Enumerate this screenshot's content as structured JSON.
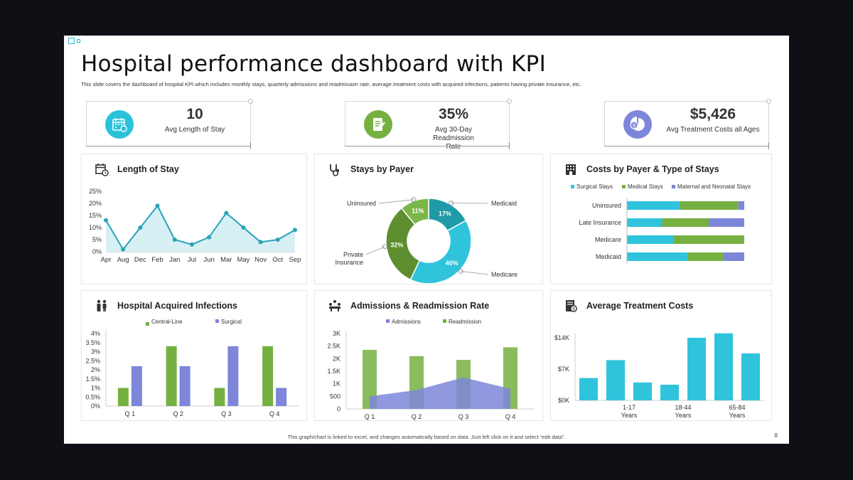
{
  "title": "Hospital performance dashboard with KPI",
  "subtitle": "This slide covers the dashboard of hospital KPI  which includes monthly stays, quarterly admissions and readmission rate, average treatment costs with acquired infections, patients having private insurance, etc.",
  "kpis": [
    {
      "value": "10",
      "label": "Avg Length of Stay",
      "icon": "calendar-icon",
      "color": "#29c3d9"
    },
    {
      "value": "35%",
      "label": "Avg 30-Day Readmission Rate",
      "icon": "clipboard-icon",
      "color": "#76b041"
    },
    {
      "value": "$5,426",
      "label": "Avg Treatment Costs all Ages",
      "icon": "pie-dollar-icon",
      "color": "#7d86d9"
    }
  ],
  "panels": {
    "length_of_stay": {
      "title": "Length of Stay",
      "icon": "calendar-clock-icon"
    },
    "stays_by_payer": {
      "title": "Stays by Payer",
      "icon": "stethoscope-icon"
    },
    "costs_by_payer": {
      "title": "Costs by Payer & Type of Stays",
      "icon": "building-icon"
    },
    "infections": {
      "title": "Hospital Acquired Infections",
      "icon": "people-icon"
    },
    "admissions": {
      "title": "Admissions & Readmission Rate",
      "icon": "meeting-icon"
    },
    "treatment_costs": {
      "title": "Average Treatment Costs",
      "icon": "document-dollar-icon"
    }
  },
  "footer": "This graph/chart is linked to excel, and changes automatically based on data. Just left click on it and select “edit data”.",
  "page_number": "8",
  "chart_data": [
    {
      "type": "area",
      "categories": [
        "Apr",
        "Aug",
        "Dec",
        "Feb",
        "Jan",
        "Jul",
        "Jun",
        "Mar",
        "May",
        "Nov",
        "Oct",
        "Sep"
      ],
      "values": [
        13,
        1,
        10,
        19,
        5,
        3,
        6,
        16,
        10,
        4,
        5,
        9
      ],
      "ylim": [
        0,
        25
      ],
      "yticks": [
        "0%",
        "5%",
        "10%",
        "15%",
        "20%",
        "25%"
      ],
      "color": "#29a3b8"
    },
    {
      "type": "pie",
      "labels": [
        "Medicaid",
        "Medicare",
        "Private Insurance",
        "Uninsured"
      ],
      "values": [
        17,
        40,
        32,
        11
      ],
      "value_labels": [
        "17%",
        "40%",
        "32%",
        "11%"
      ],
      "colors": [
        "#1f9aa6",
        "#2fc4dc",
        "#5e8e2f",
        "#7ab648"
      ]
    },
    {
      "type": "bar",
      "orientation": "horizontal",
      "stacked": true,
      "categories": [
        "Uninsured",
        "Late Insurance",
        "Medicare",
        "Medicaid"
      ],
      "series": [
        {
          "name": "Surgical Stays",
          "values": [
            45,
            30,
            40,
            52
          ],
          "color": "#2fc4dc"
        },
        {
          "name": "Medical Stays",
          "values": [
            50,
            40,
            60,
            30
          ],
          "color": "#76b041"
        },
        {
          "name": "Maternal and Neonatal Stays",
          "values": [
            5,
            30,
            0,
            18
          ],
          "color": "#7d86d9"
        }
      ]
    },
    {
      "type": "bar",
      "categories": [
        "Q 1",
        "Q 2",
        "Q 3",
        "Q 4"
      ],
      "series": [
        {
          "name": "Central-Line",
          "values": [
            1.0,
            3.3,
            1.0,
            3.3
          ],
          "color": "#76b041"
        },
        {
          "name": "Surgical",
          "values": [
            2.2,
            2.2,
            3.3,
            1.0
          ],
          "color": "#7d86d9"
        }
      ],
      "ylim": [
        0,
        4
      ],
      "yticks": [
        "0%",
        "0.5%",
        "1%",
        "1.5%",
        "2%",
        "2.5%",
        "3%",
        "3.5%",
        "4%"
      ]
    },
    {
      "type": "bar",
      "categories": [
        "Q 1",
        "Q 2",
        "Q 3",
        "Q 4"
      ],
      "series": [
        {
          "name": "Admissions",
          "type": "area",
          "values": [
            500,
            750,
            1250,
            800
          ],
          "color": "#7d86d9"
        },
        {
          "name": "Readmission",
          "type": "bar",
          "values": [
            2350,
            2100,
            1950,
            2450
          ],
          "color": "#76b041"
        }
      ],
      "ylim": [
        0,
        3000
      ],
      "yticks": [
        "0",
        "500",
        "1K",
        "1.5K",
        "2K",
        "2.5K",
        "3K"
      ]
    },
    {
      "type": "bar",
      "categories": [
        "",
        "1-17 Years",
        "",
        "18-44 Years",
        "",
        "65-84 Years",
        ""
      ],
      "values": [
        5000,
        9000,
        4000,
        3500,
        14000,
        15000,
        10500
      ],
      "ylim": [
        0,
        14000
      ],
      "yticks": [
        "$0K",
        "$7K",
        "$14K"
      ],
      "color": "#2fc4dc"
    }
  ]
}
